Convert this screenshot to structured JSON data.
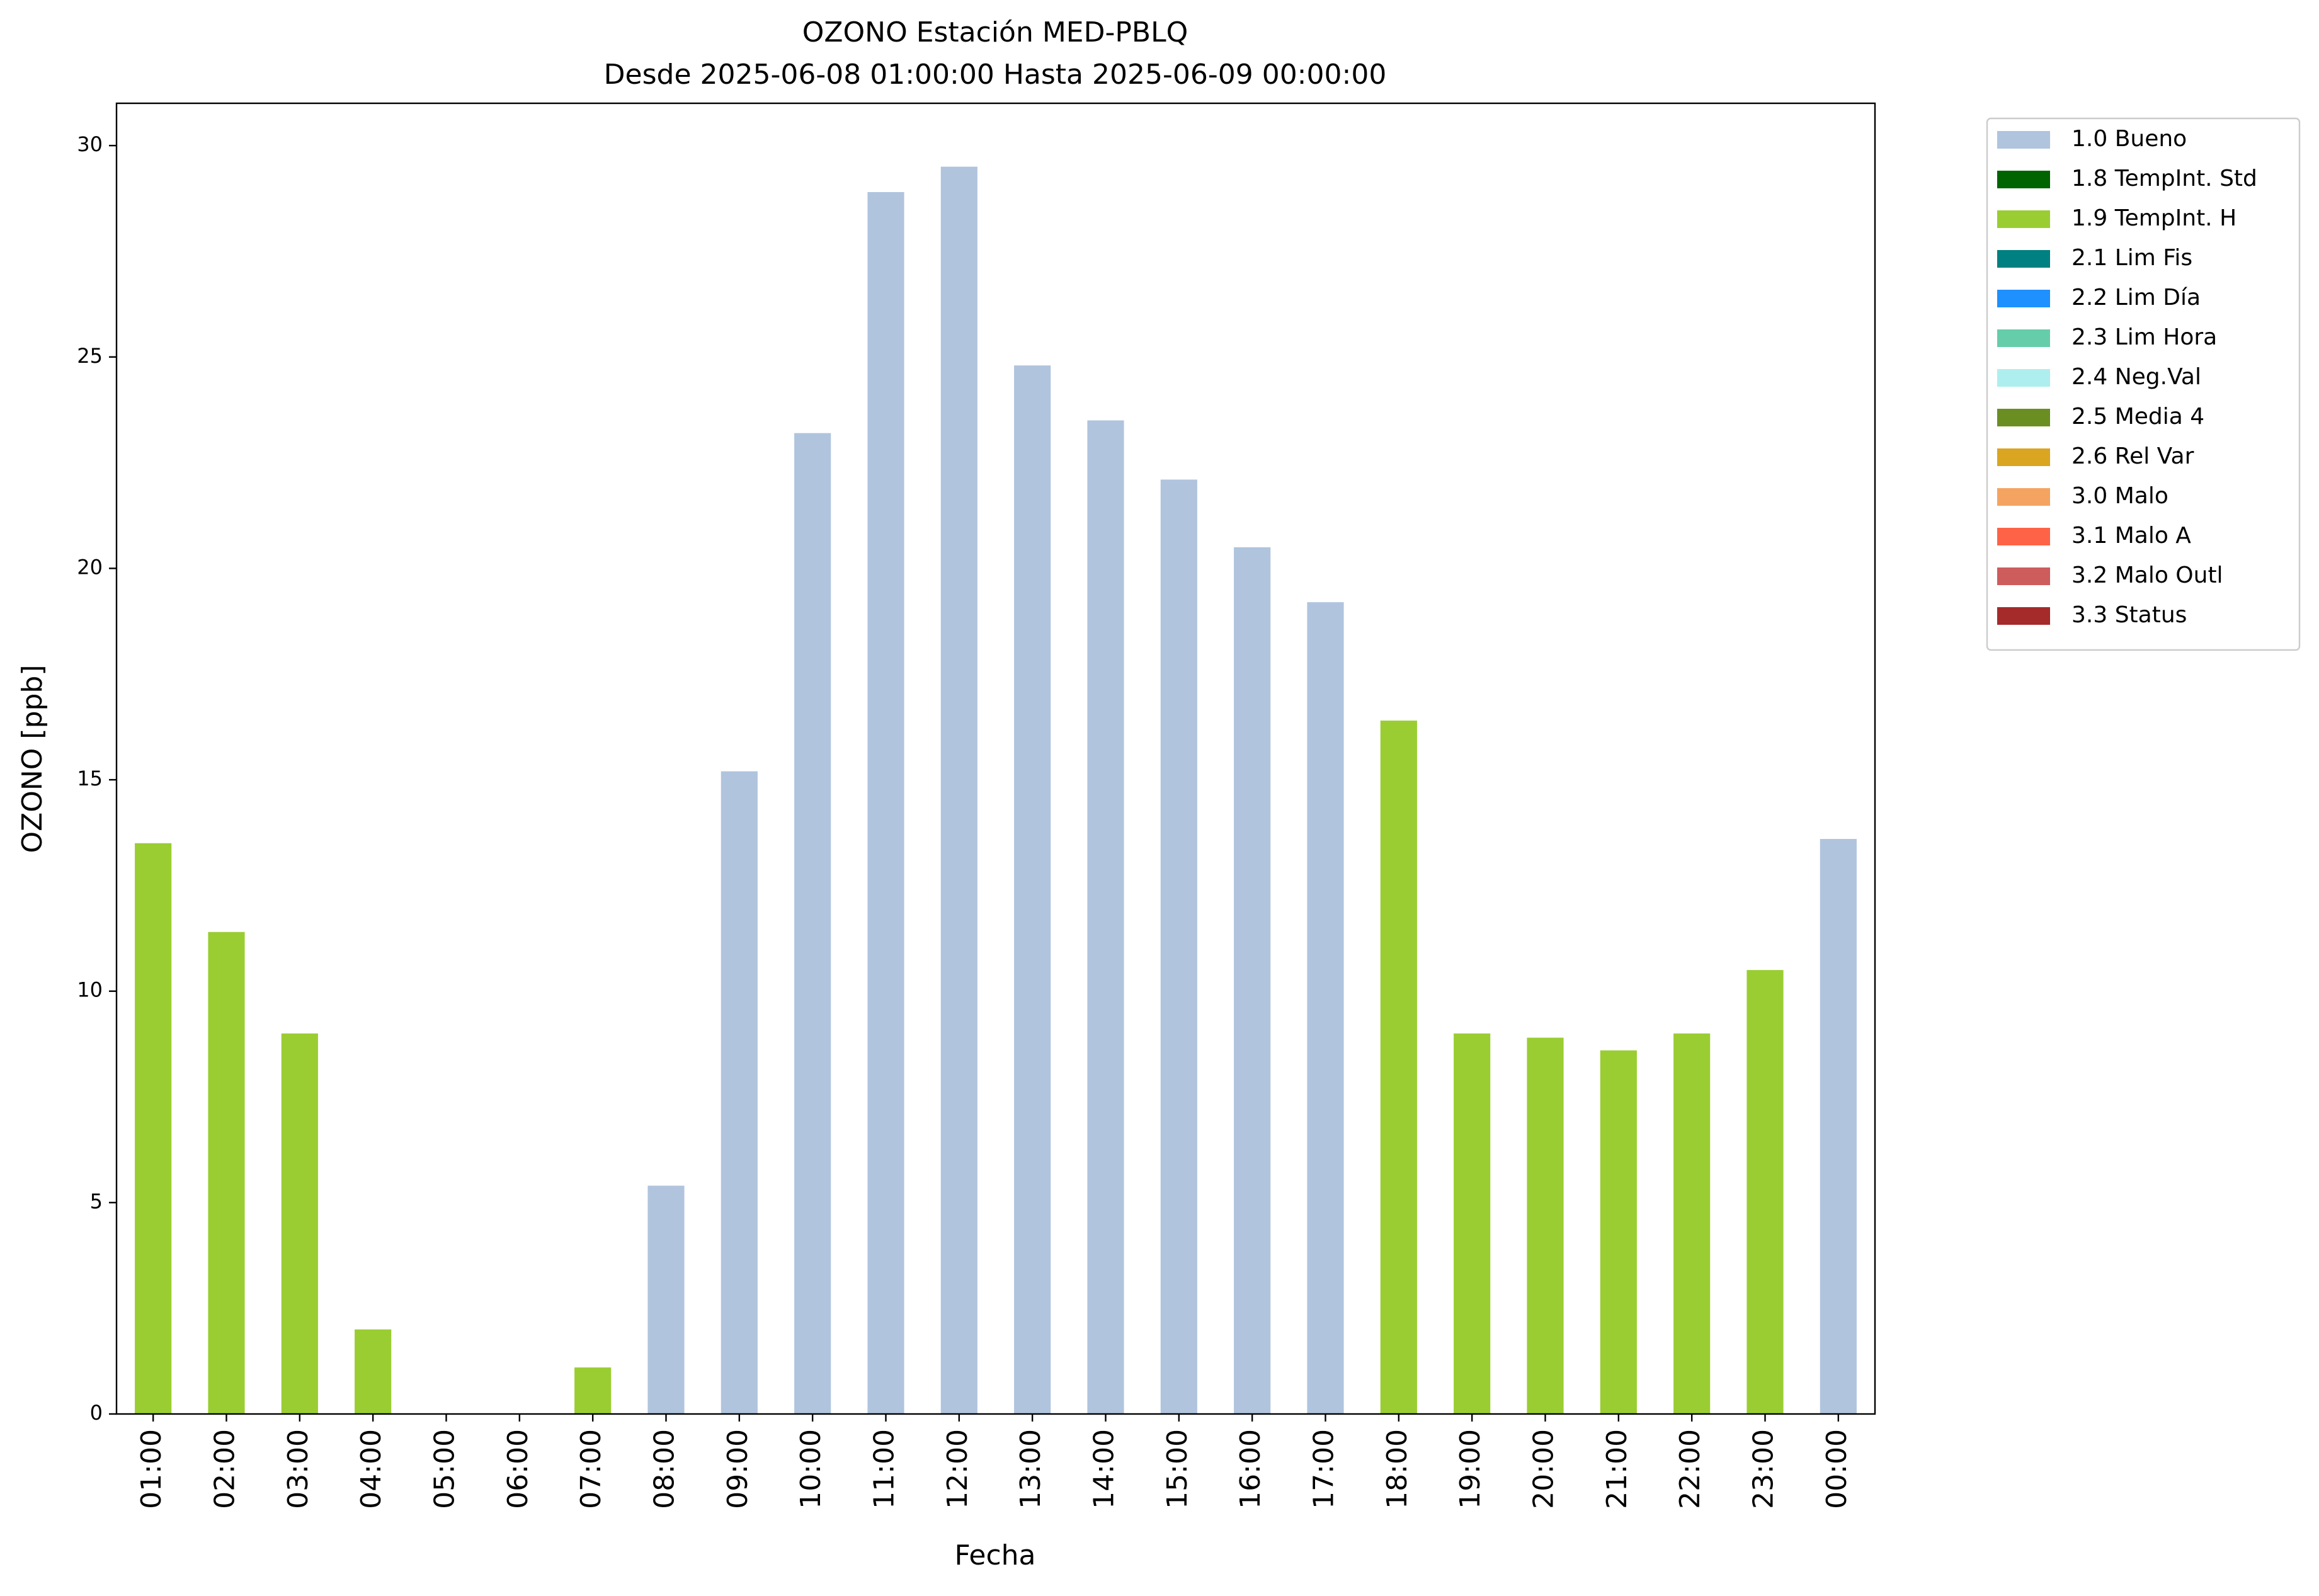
{
  "chart_data": {
    "type": "stacked-bar",
    "title": "OZONO Estación MED-PBLQ",
    "subtitle": "Desde 2025-06-08 01:00:00 Hasta 2025-06-09 00:00:00",
    "x_label": "Fecha",
    "y_label": "OZONO [ppb]",
    "categories": [
      "01:00",
      "02:00",
      "03:00",
      "04:00",
      "05:00",
      "06:00",
      "07:00",
      "08:00",
      "09:00",
      "10:00",
      "11:00",
      "12:00",
      "13:00",
      "14:00",
      "15:00",
      "16:00",
      "17:00",
      "18:00",
      "19:00",
      "20:00",
      "21:00",
      "22:00",
      "23:00",
      "00:00"
    ],
    "series": [
      {
        "name": "1.0 Bueno",
        "color": "#b0c4de",
        "values": [
          null,
          null,
          null,
          null,
          null,
          null,
          null,
          5.4,
          15.2,
          23.2,
          28.9,
          29.5,
          24.8,
          23.5,
          22.1,
          20.5,
          19.2,
          null,
          null,
          null,
          null,
          null,
          null,
          13.6
        ]
      },
      {
        "name": "1.8 TempInt. Std",
        "color": "#006400",
        "values": [
          null,
          null,
          null,
          null,
          null,
          null,
          null,
          null,
          null,
          null,
          null,
          null,
          null,
          null,
          null,
          null,
          null,
          null,
          null,
          null,
          null,
          null,
          null,
          null
        ]
      },
      {
        "name": "1.9 TempInt. H",
        "color": "#9acd32",
        "values": [
          13.5,
          11.4,
          9.0,
          2.0,
          null,
          null,
          1.1,
          null,
          null,
          null,
          null,
          null,
          null,
          null,
          null,
          null,
          null,
          16.4,
          9.0,
          8.9,
          8.6,
          9.0,
          10.5,
          null
        ]
      },
      {
        "name": "2.1 Lim Fis",
        "color": "#008080",
        "values": [
          null,
          null,
          null,
          null,
          null,
          null,
          null,
          null,
          null,
          null,
          null,
          null,
          null,
          null,
          null,
          null,
          null,
          null,
          null,
          null,
          null,
          null,
          null,
          null
        ]
      },
      {
        "name": "2.2 Lim Día",
        "color": "#1e90ff",
        "values": [
          null,
          null,
          null,
          null,
          null,
          null,
          null,
          null,
          null,
          null,
          null,
          null,
          null,
          null,
          null,
          null,
          null,
          null,
          null,
          null,
          null,
          null,
          null,
          null
        ]
      },
      {
        "name": "2.3 Lim Hora",
        "color": "#66cdaa",
        "values": [
          null,
          null,
          null,
          null,
          null,
          null,
          null,
          null,
          null,
          null,
          null,
          null,
          null,
          null,
          null,
          null,
          null,
          null,
          null,
          null,
          null,
          null,
          null,
          null
        ]
      },
      {
        "name": "2.4 Neg.Val",
        "color": "#afeeee",
        "values": [
          null,
          null,
          null,
          null,
          null,
          null,
          null,
          null,
          null,
          null,
          null,
          null,
          null,
          null,
          null,
          null,
          null,
          null,
          null,
          null,
          null,
          null,
          null,
          null
        ]
      },
      {
        "name": "2.5 Media 4",
        "color": "#6b8e23",
        "values": [
          null,
          null,
          null,
          null,
          null,
          null,
          null,
          null,
          null,
          null,
          null,
          null,
          null,
          null,
          null,
          null,
          null,
          null,
          null,
          null,
          null,
          null,
          null,
          null
        ]
      },
      {
        "name": "2.6 Rel Var",
        "color": "#daa520",
        "values": [
          null,
          null,
          null,
          null,
          null,
          null,
          null,
          null,
          null,
          null,
          null,
          null,
          null,
          null,
          null,
          null,
          null,
          null,
          null,
          null,
          null,
          null,
          null,
          null
        ]
      },
      {
        "name": "3.0 Malo",
        "color": "#f4a460",
        "values": [
          null,
          null,
          null,
          null,
          null,
          null,
          null,
          null,
          null,
          null,
          null,
          null,
          null,
          null,
          null,
          null,
          null,
          null,
          null,
          null,
          null,
          null,
          null,
          null
        ]
      },
      {
        "name": "3.1 Malo A",
        "color": "#ff6347",
        "values": [
          null,
          null,
          null,
          null,
          null,
          null,
          null,
          null,
          null,
          null,
          null,
          null,
          null,
          null,
          null,
          null,
          null,
          null,
          null,
          null,
          null,
          null,
          null,
          null
        ]
      },
      {
        "name": "3.2 Malo Outl",
        "color": "#cd5c5c",
        "values": [
          null,
          null,
          null,
          null,
          null,
          null,
          null,
          null,
          null,
          null,
          null,
          null,
          null,
          null,
          null,
          null,
          null,
          null,
          null,
          null,
          null,
          null,
          null,
          null
        ]
      },
      {
        "name": "3.3 Status",
        "color": "#a52a2a",
        "values": [
          null,
          null,
          null,
          null,
          null,
          null,
          null,
          null,
          null,
          null,
          null,
          null,
          null,
          null,
          null,
          null,
          null,
          null,
          null,
          null,
          null,
          null,
          null,
          null
        ]
      }
    ],
    "ylim": [
      0,
      31
    ],
    "yticks": [
      0,
      5,
      10,
      15,
      20,
      25,
      30
    ],
    "grid": true,
    "legend": "outside-right"
  }
}
